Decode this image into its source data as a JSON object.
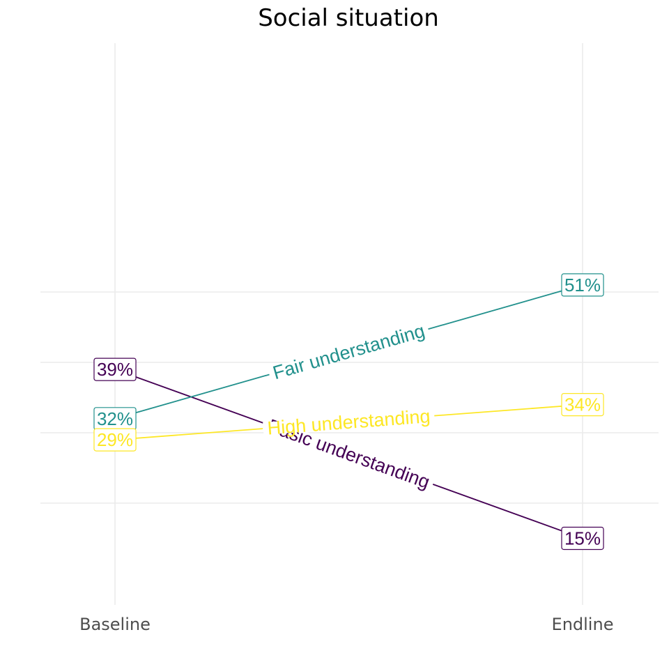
{
  "chart_data": {
    "type": "line",
    "title": "Social situation",
    "xlabel": "",
    "ylabel": "",
    "categories": [
      "Baseline",
      "Endline"
    ],
    "ylim": [
      10,
      55
    ],
    "grid": true,
    "legend": "none (series labelled inline)",
    "series": [
      {
        "name": "Basic understanding",
        "values": [
          39,
          15
        ],
        "labels": [
          "39%",
          "15%"
        ],
        "color": "#440154"
      },
      {
        "name": "Fair understanding",
        "values": [
          32,
          51
        ],
        "labels": [
          "32%",
          "51%"
        ],
        "color": "#21908C"
      },
      {
        "name": "High understanding",
        "values": [
          29,
          34
        ],
        "labels": [
          "29%",
          "34%"
        ],
        "color": "#FDE725"
      }
    ]
  }
}
